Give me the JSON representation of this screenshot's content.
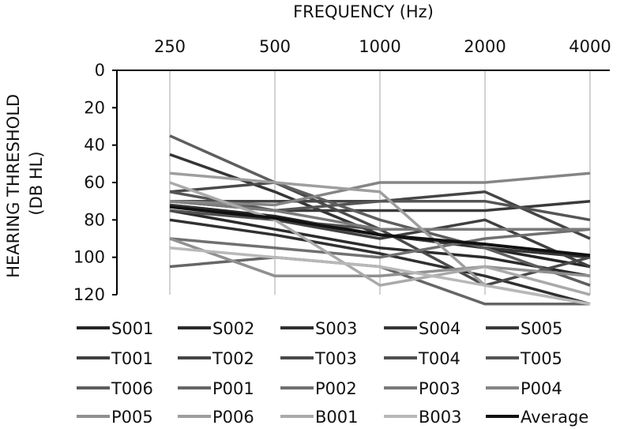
{
  "chart_data": {
    "type": "line",
    "xlabel": "FREQUENCY (Hz)",
    "ylabel_lines": [
      "HEARING THRESHOLD",
      "(DB HL)"
    ],
    "categories": [
      "250",
      "500",
      "1000",
      "2000",
      "4000"
    ],
    "yticks": [
      "0",
      "20",
      "40",
      "60",
      "80",
      "100",
      "120"
    ],
    "ylim": [
      0,
      120
    ],
    "y_inverted": true,
    "x_axis_position": "top",
    "grid": "vertical",
    "legend_position": "bottom",
    "series": [
      {
        "name": "S001",
        "color": "#262626",
        "values": [
          72,
          78,
          88,
          95,
          105
        ]
      },
      {
        "name": "S002",
        "color": "#2b2b2b",
        "values": [
          75,
          85,
          95,
          100,
          110
        ]
      },
      {
        "name": "S003",
        "color": "#303030",
        "values": [
          80,
          88,
          98,
          110,
          125
        ]
      },
      {
        "name": "S004",
        "color": "#353535",
        "values": [
          45,
          65,
          88,
          95,
          100
        ]
      },
      {
        "name": "S005",
        "color": "#3a3a3a",
        "values": [
          70,
          75,
          75,
          75,
          70
        ]
      },
      {
        "name": "T001",
        "color": "#404040",
        "values": [
          72,
          80,
          90,
          80,
          105
        ]
      },
      {
        "name": "T002",
        "color": "#454545",
        "values": [
          70,
          70,
          70,
          65,
          90
        ]
      },
      {
        "name": "T003",
        "color": "#4a4a4a",
        "values": [
          65,
          60,
          85,
          115,
          100
        ]
      },
      {
        "name": "T004",
        "color": "#505050",
        "values": [
          75,
          80,
          85,
          85,
          85
        ]
      },
      {
        "name": "T005",
        "color": "#555555",
        "values": [
          65,
          75,
          70,
          70,
          80
        ]
      },
      {
        "name": "T006",
        "color": "#5e5e5e",
        "values": [
          35,
          60,
          80,
          95,
          115
        ]
      },
      {
        "name": "P001",
        "color": "#666666",
        "values": [
          105,
          100,
          105,
          125,
          125
        ]
      },
      {
        "name": "P002",
        "color": "#707070",
        "values": [
          90,
          95,
          100,
          90,
          85
        ]
      },
      {
        "name": "P003",
        "color": "#7a7a7a",
        "values": [
          70,
          75,
          85,
          85,
          85
        ]
      },
      {
        "name": "P004",
        "color": "#858585",
        "values": [
          70,
          72,
          60,
          60,
          55
        ]
      },
      {
        "name": "P005",
        "color": "#909090",
        "values": [
          90,
          110,
          110,
          105,
          110
        ]
      },
      {
        "name": "P006",
        "color": "#9e9e9e",
        "values": [
          55,
          60,
          65,
          115,
          125
        ]
      },
      {
        "name": "B001",
        "color": "#aaaaaa",
        "values": [
          60,
          80,
          115,
          105,
          120
        ]
      },
      {
        "name": "B003",
        "color": "#b8b8b8",
        "values": [
          95,
          100,
          105,
          115,
          125
        ]
      },
      {
        "name": "Average",
        "color": "#111111",
        "values": [
          73,
          79,
          88,
          93,
          99
        ]
      }
    ]
  }
}
